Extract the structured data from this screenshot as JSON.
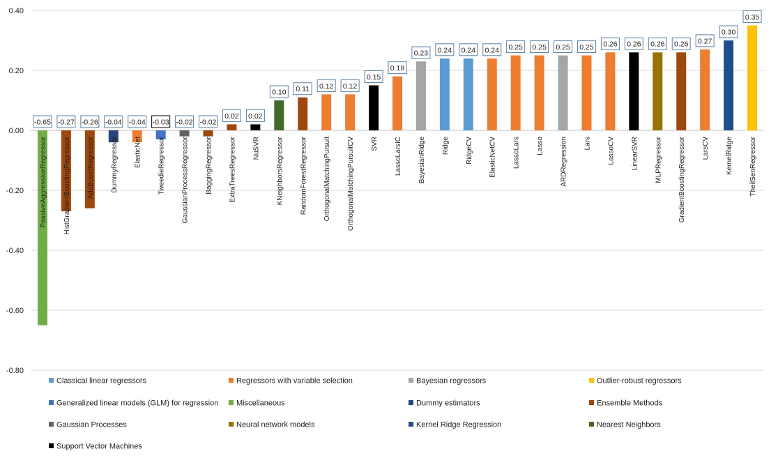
{
  "chart_data": {
    "type": "bar",
    "title": "",
    "xlabel": "",
    "ylabel": "",
    "ylim": [
      -0.8,
      0.4
    ],
    "yticks": [
      "0.40",
      "0.20",
      "0.00",
      "-0.20",
      "-0.40",
      "-0.60",
      "-0.80"
    ],
    "grid": "horizontal",
    "legend_position": "bottom",
    "categories": [
      "PassiveAggressiveRegressor",
      "HistGradientBoostingRegressor",
      "AdaBoostRegressor",
      "DummyRegressor",
      "ElasticNet",
      "TweedieRegressor",
      "GaussianProcessRegressor",
      "BaggingRegressor",
      "ExtraTreesRegressor",
      "NuSVR",
      "KNeighborsRegressor",
      "RandomForestRegressor",
      "OrthogonalMatchingPursuit",
      "OrthogonalMatchingPursuitCV",
      "SVR",
      "LassoLarsIC",
      "BayesianRidge",
      "Ridge",
      "RidgeCV",
      "ElasticNetCV",
      "LassoLars",
      "Lasso",
      "ARDRegression",
      "Lars",
      "LassoCV",
      "LinearSVR",
      "MLPRegressor",
      "GradientBoostingRegressor",
      "LarsCV",
      "KernelRidge",
      "TheilSenRegressor"
    ],
    "values": [
      -0.65,
      -0.27,
      -0.26,
      -0.04,
      -0.04,
      -0.03,
      -0.02,
      -0.02,
      0.02,
      0.02,
      0.1,
      0.11,
      0.12,
      0.12,
      0.15,
      0.18,
      0.23,
      0.24,
      0.24,
      0.24,
      0.25,
      0.25,
      0.25,
      0.25,
      0.26,
      0.26,
      0.26,
      0.26,
      0.27,
      0.3,
      0.35
    ],
    "value_labels": [
      "-0.65",
      "-0.27",
      "-0.26",
      "-0.04",
      "-0.04",
      "-0.03",
      "-0.02",
      "-0.02",
      "0.02",
      "0.02",
      "0.10",
      "0.11",
      "0.12",
      "0.12",
      "0.15",
      "0.18",
      "0.23",
      "0.24",
      "0.24",
      "0.24",
      "0.25",
      "0.25",
      "0.25",
      "0.25",
      "0.26",
      "0.26",
      "0.26",
      "0.26",
      "0.27",
      "0.30",
      "0.35"
    ],
    "bar_groups": [
      "Miscellaneous",
      "Ensemble Methods",
      "Ensemble Methods",
      "Dummy estimators",
      "Regressors with variable selection",
      "Generalized linear models (GLM) for regression",
      "Gaussian Processes",
      "Ensemble Methods",
      "Ensemble Methods",
      "Support Vector Machines",
      "Nearest Neighbors",
      "Ensemble Methods",
      "Regressors with variable selection",
      "Regressors with variable selection",
      "Support Vector Machines",
      "Regressors with variable selection",
      "Bayesian regressors",
      "Classical linear regressors",
      "Classical linear regressors",
      "Regressors with variable selection",
      "Regressors with variable selection",
      "Regressors with variable selection",
      "Bayesian regressors",
      "Regressors with variable selection",
      "Regressors with variable selection",
      "Support Vector Machines",
      "Neural network models",
      "Ensemble Methods",
      "Regressors with variable selection",
      "Kernel Ridge Regression",
      "Outlier-robust regressors"
    ],
    "legend": [
      {
        "name": "Classical linear regressors",
        "color": "#5B9BD5"
      },
      {
        "name": "Regressors with variable selection",
        "color": "#ED7D31"
      },
      {
        "name": "Bayesian regressors",
        "color": "#A5A5A5"
      },
      {
        "name": "Outlier-robust regressors",
        "color": "#FFC000"
      },
      {
        "name": "Generalized linear models (GLM) for regression",
        "color": "#4472C4"
      },
      {
        "name": "Miscellaneous",
        "color": "#70AD47"
      },
      {
        "name": "Dummy estimators",
        "color": "#264478"
      },
      {
        "name": "Ensemble Methods",
        "color": "#9E480E"
      },
      {
        "name": "Gaussian Processes",
        "color": "#636363"
      },
      {
        "name": "Neural network models",
        "color": "#997300"
      },
      {
        "name": "Kernel Ridge Regression",
        "color": "#1F4E8C"
      },
      {
        "name": "Nearest Neighbors",
        "color": "#43682B"
      },
      {
        "name": "Support Vector Machines",
        "color": "#000000"
      }
    ]
  }
}
